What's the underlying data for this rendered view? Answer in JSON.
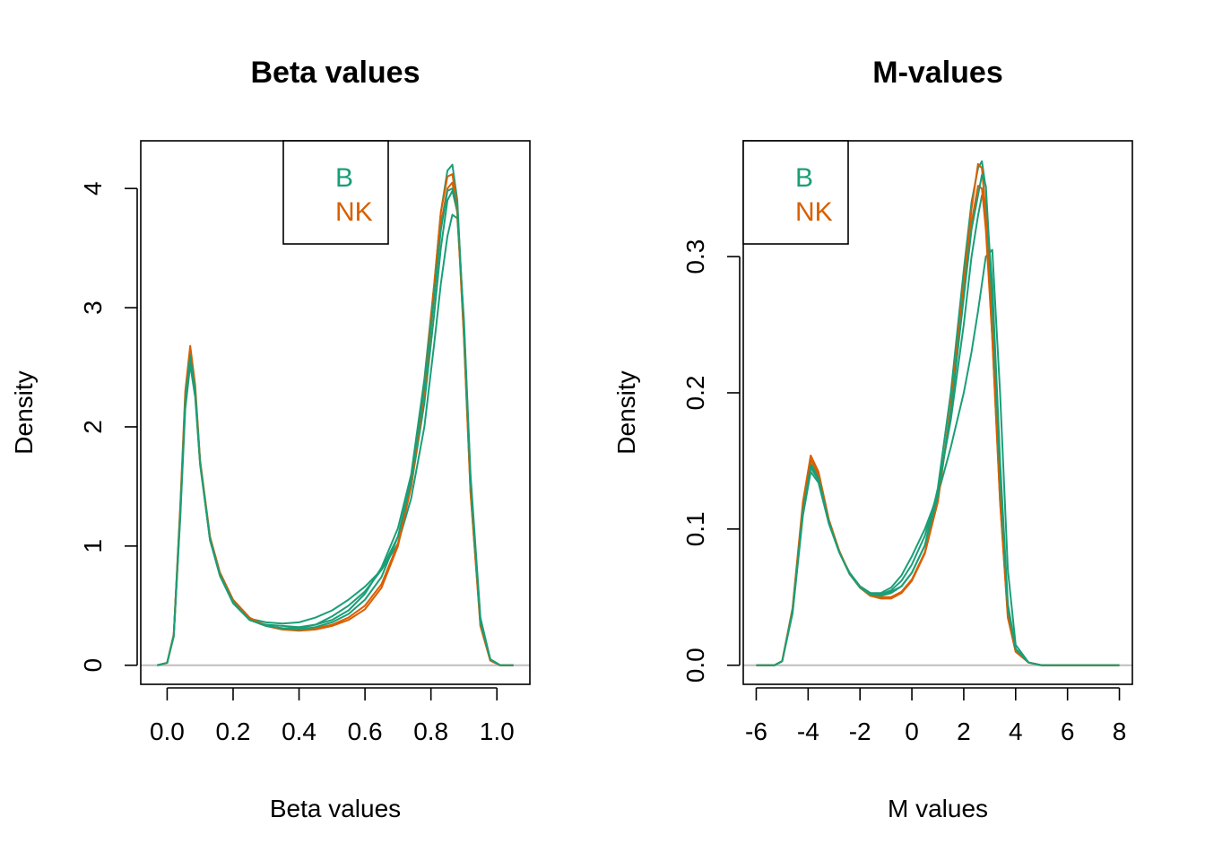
{
  "colors": {
    "B": "#1b9e77",
    "NK": "#d95f02"
  },
  "chart_data": [
    {
      "type": "line",
      "title": "Beta values",
      "xlabel": "Beta values",
      "ylabel": "Density",
      "xlim": [
        -0.08,
        1.1
      ],
      "ylim": [
        -0.16,
        4.4
      ],
      "xticks": [
        0.0,
        0.2,
        0.4,
        0.6,
        0.8,
        1.0
      ],
      "xtick_labels": [
        "0.0",
        "0.2",
        "0.4",
        "0.6",
        "0.8",
        "1.0"
      ],
      "yticks": [
        0,
        1,
        2,
        3,
        4
      ],
      "ytick_labels": [
        "0",
        "1",
        "2",
        "3",
        "4"
      ],
      "legend": {
        "position": "top-center",
        "entries": [
          {
            "label": "B",
            "color": "#1b9e77"
          },
          {
            "label": "NK",
            "color": "#d95f02"
          }
        ]
      },
      "series": [
        {
          "group": "B",
          "color": "#1b9e77",
          "x": [
            -0.03,
            0.0,
            0.02,
            0.04,
            0.055,
            0.07,
            0.085,
            0.1,
            0.13,
            0.16,
            0.2,
            0.25,
            0.3,
            0.35,
            0.4,
            0.45,
            0.5,
            0.55,
            0.6,
            0.65,
            0.7,
            0.74,
            0.78,
            0.81,
            0.83,
            0.85,
            0.865,
            0.88,
            0.9,
            0.92,
            0.95,
            0.98,
            1.01,
            1.05
          ],
          "y": [
            0.0,
            0.02,
            0.25,
            1.3,
            2.25,
            2.6,
            2.3,
            1.7,
            1.05,
            0.75,
            0.52,
            0.38,
            0.34,
            0.33,
            0.32,
            0.34,
            0.38,
            0.46,
            0.6,
            0.82,
            1.15,
            1.6,
            2.4,
            3.2,
            3.8,
            4.15,
            4.2,
            3.9,
            2.8,
            1.5,
            0.35,
            0.04,
            0.0,
            0.0
          ]
        },
        {
          "group": "B",
          "color": "#1b9e77",
          "x": [
            -0.03,
            0.0,
            0.02,
            0.04,
            0.055,
            0.07,
            0.085,
            0.1,
            0.13,
            0.16,
            0.2,
            0.25,
            0.3,
            0.35,
            0.4,
            0.45,
            0.5,
            0.55,
            0.6,
            0.65,
            0.7,
            0.74,
            0.78,
            0.81,
            0.83,
            0.85,
            0.865,
            0.88,
            0.9,
            0.92,
            0.95,
            0.98,
            1.01,
            1.05
          ],
          "y": [
            0.0,
            0.02,
            0.24,
            1.25,
            2.15,
            2.52,
            2.25,
            1.68,
            1.06,
            0.77,
            0.54,
            0.39,
            0.36,
            0.35,
            0.36,
            0.4,
            0.46,
            0.55,
            0.66,
            0.8,
            1.02,
            1.4,
            2.0,
            2.7,
            3.2,
            3.6,
            3.78,
            3.75,
            2.9,
            1.6,
            0.4,
            0.05,
            0.0,
            0.0
          ]
        },
        {
          "group": "B",
          "color": "#1b9e77",
          "x": [
            -0.03,
            0.0,
            0.02,
            0.04,
            0.055,
            0.07,
            0.085,
            0.1,
            0.13,
            0.16,
            0.2,
            0.25,
            0.3,
            0.35,
            0.4,
            0.45,
            0.5,
            0.55,
            0.6,
            0.65,
            0.7,
            0.74,
            0.78,
            0.81,
            0.83,
            0.85,
            0.865,
            0.88,
            0.9,
            0.92,
            0.95,
            0.98,
            1.01,
            1.05
          ],
          "y": [
            0.0,
            0.02,
            0.25,
            1.28,
            2.2,
            2.56,
            2.28,
            1.7,
            1.05,
            0.76,
            0.53,
            0.38,
            0.33,
            0.31,
            0.31,
            0.34,
            0.41,
            0.5,
            0.62,
            0.8,
            1.08,
            1.5,
            2.2,
            2.95,
            3.5,
            3.9,
            3.98,
            3.8,
            2.85,
            1.55,
            0.38,
            0.05,
            0.0,
            0.0
          ]
        },
        {
          "group": "NK",
          "color": "#d95f02",
          "x": [
            -0.03,
            0.0,
            0.02,
            0.04,
            0.055,
            0.07,
            0.085,
            0.1,
            0.13,
            0.16,
            0.2,
            0.25,
            0.3,
            0.35,
            0.4,
            0.45,
            0.5,
            0.55,
            0.6,
            0.65,
            0.7,
            0.74,
            0.78,
            0.81,
            0.83,
            0.85,
            0.865,
            0.88,
            0.9,
            0.92,
            0.95,
            0.98,
            1.01,
            1.05
          ],
          "y": [
            0.0,
            0.02,
            0.26,
            1.35,
            2.3,
            2.68,
            2.35,
            1.72,
            1.08,
            0.78,
            0.55,
            0.4,
            0.33,
            0.3,
            0.29,
            0.3,
            0.33,
            0.38,
            0.47,
            0.65,
            1.0,
            1.5,
            2.35,
            3.2,
            3.8,
            4.1,
            4.12,
            3.85,
            2.75,
            1.45,
            0.33,
            0.04,
            0.0,
            0.0
          ]
        },
        {
          "group": "NK",
          "color": "#d95f02",
          "x": [
            -0.03,
            0.0,
            0.02,
            0.04,
            0.055,
            0.07,
            0.085,
            0.1,
            0.13,
            0.16,
            0.2,
            0.25,
            0.3,
            0.35,
            0.4,
            0.45,
            0.5,
            0.55,
            0.6,
            0.65,
            0.7,
            0.74,
            0.78,
            0.81,
            0.83,
            0.85,
            0.865,
            0.88,
            0.9,
            0.92,
            0.95,
            0.98,
            1.01,
            1.05
          ],
          "y": [
            0.0,
            0.02,
            0.25,
            1.32,
            2.25,
            2.63,
            2.32,
            1.7,
            1.07,
            0.77,
            0.54,
            0.39,
            0.33,
            0.3,
            0.3,
            0.31,
            0.34,
            0.4,
            0.5,
            0.68,
            1.02,
            1.5,
            2.3,
            3.1,
            3.7,
            4.0,
            4.05,
            3.8,
            2.75,
            1.45,
            0.33,
            0.04,
            0.0,
            0.0
          ]
        },
        {
          "group": "B",
          "color": "#1b9e77",
          "x": [
            -0.03,
            0.0,
            0.02,
            0.04,
            0.055,
            0.07,
            0.085,
            0.1,
            0.13,
            0.16,
            0.2,
            0.25,
            0.3,
            0.35,
            0.4,
            0.45,
            0.5,
            0.55,
            0.6,
            0.65,
            0.7,
            0.74,
            0.78,
            0.81,
            0.83,
            0.85,
            0.865,
            0.88,
            0.9,
            0.92,
            0.95,
            0.98,
            1.01,
            1.05
          ],
          "y": [
            0.0,
            0.02,
            0.25,
            1.3,
            2.22,
            2.6,
            2.3,
            1.7,
            1.06,
            0.76,
            0.53,
            0.38,
            0.33,
            0.31,
            0.3,
            0.32,
            0.36,
            0.43,
            0.55,
            0.74,
            1.08,
            1.55,
            2.35,
            3.1,
            3.65,
            3.98,
            4.0,
            3.85,
            2.85,
            1.55,
            0.36,
            0.05,
            0.0,
            0.0
          ]
        }
      ]
    },
    {
      "type": "line",
      "title": "M-values",
      "xlabel": "M values",
      "ylabel": "Density",
      "xlim": [
        -6.5,
        8.5
      ],
      "ylim": [
        -0.014,
        0.385
      ],
      "xticks": [
        -6,
        -4,
        -2,
        0,
        2,
        4,
        6,
        8
      ],
      "xtick_labels": [
        "-6",
        "-4",
        "-2",
        "0",
        "2",
        "4",
        "6",
        "8"
      ],
      "yticks": [
        0.0,
        0.1,
        0.2,
        0.3
      ],
      "ytick_labels": [
        "0.0",
        "0.1",
        "0.2",
        "0.3"
      ],
      "legend": {
        "position": "top-left",
        "entries": [
          {
            "label": "B",
            "color": "#1b9e77"
          },
          {
            "label": "NK",
            "color": "#d95f02"
          }
        ]
      },
      "series": [
        {
          "group": "B",
          "color": "#1b9e77",
          "x": [
            -6,
            -5.3,
            -5.0,
            -4.6,
            -4.2,
            -3.9,
            -3.6,
            -3.2,
            -2.8,
            -2.4,
            -2.0,
            -1.6,
            -1.2,
            -0.8,
            -0.4,
            0.0,
            0.5,
            1.0,
            1.5,
            2.0,
            2.3,
            2.55,
            2.7,
            2.85,
            3.1,
            3.4,
            3.7,
            4.0,
            4.5,
            5.0,
            6.0,
            8.0
          ],
          "y": [
            0.0,
            0.0,
            0.003,
            0.04,
            0.115,
            0.148,
            0.138,
            0.105,
            0.083,
            0.067,
            0.058,
            0.053,
            0.052,
            0.054,
            0.058,
            0.068,
            0.088,
            0.13,
            0.2,
            0.29,
            0.34,
            0.365,
            0.37,
            0.35,
            0.26,
            0.13,
            0.04,
            0.012,
            0.002,
            0.0,
            0.0,
            0.0
          ]
        },
        {
          "group": "B",
          "color": "#1b9e77",
          "x": [
            -6,
            -5.3,
            -5.0,
            -4.6,
            -4.2,
            -3.9,
            -3.6,
            -3.2,
            -2.8,
            -2.4,
            -2.0,
            -1.6,
            -1.2,
            -0.8,
            -0.4,
            0.0,
            0.5,
            1.0,
            1.5,
            2.0,
            2.3,
            2.55,
            2.7,
            2.85,
            3.1,
            3.4,
            3.7,
            4.0,
            4.5,
            5.0,
            6.0,
            8.0
          ],
          "y": [
            0.0,
            0.0,
            0.003,
            0.038,
            0.11,
            0.142,
            0.134,
            0.104,
            0.083,
            0.068,
            0.058,
            0.053,
            0.053,
            0.057,
            0.066,
            0.08,
            0.1,
            0.125,
            0.16,
            0.2,
            0.23,
            0.26,
            0.28,
            0.3,
            0.305,
            0.2,
            0.07,
            0.015,
            0.002,
            0.0,
            0.0,
            0.0
          ]
        },
        {
          "group": "B",
          "color": "#1b9e77",
          "x": [
            -6,
            -5.3,
            -5.0,
            -4.6,
            -4.2,
            -3.9,
            -3.6,
            -3.2,
            -2.8,
            -2.4,
            -2.0,
            -1.6,
            -1.2,
            -0.8,
            -0.4,
            0.0,
            0.5,
            1.0,
            1.5,
            2.0,
            2.3,
            2.55,
            2.7,
            2.85,
            3.1,
            3.4,
            3.7,
            4.0,
            4.5,
            5.0,
            6.0,
            8.0
          ],
          "y": [
            0.0,
            0.0,
            0.003,
            0.039,
            0.112,
            0.145,
            0.136,
            0.104,
            0.083,
            0.067,
            0.057,
            0.052,
            0.052,
            0.055,
            0.062,
            0.074,
            0.095,
            0.128,
            0.18,
            0.25,
            0.3,
            0.33,
            0.345,
            0.34,
            0.28,
            0.15,
            0.045,
            0.012,
            0.002,
            0.0,
            0.0,
            0.0
          ]
        },
        {
          "group": "NK",
          "color": "#d95f02",
          "x": [
            -6,
            -5.3,
            -5.0,
            -4.6,
            -4.2,
            -3.9,
            -3.6,
            -3.2,
            -2.8,
            -2.4,
            -2.0,
            -1.6,
            -1.2,
            -0.8,
            -0.4,
            0.0,
            0.5,
            1.0,
            1.5,
            2.0,
            2.3,
            2.55,
            2.7,
            2.85,
            3.1,
            3.4,
            3.7,
            4.0,
            4.5,
            5.0,
            6.0,
            8.0
          ],
          "y": [
            0.0,
            0.0,
            0.003,
            0.042,
            0.12,
            0.154,
            0.142,
            0.107,
            0.084,
            0.067,
            0.057,
            0.051,
            0.049,
            0.049,
            0.053,
            0.062,
            0.082,
            0.12,
            0.19,
            0.28,
            0.335,
            0.368,
            0.365,
            0.33,
            0.24,
            0.12,
            0.035,
            0.01,
            0.002,
            0.0,
            0.0,
            0.0
          ]
        },
        {
          "group": "NK",
          "color": "#d95f02",
          "x": [
            -6,
            -5.3,
            -5.0,
            -4.6,
            -4.2,
            -3.9,
            -3.6,
            -3.2,
            -2.8,
            -2.4,
            -2.0,
            -1.6,
            -1.2,
            -0.8,
            -0.4,
            0.0,
            0.5,
            1.0,
            1.5,
            2.0,
            2.3,
            2.55,
            2.7,
            2.85,
            3.1,
            3.4,
            3.7,
            4.0,
            4.5,
            5.0,
            6.0,
            8.0
          ],
          "y": [
            0.0,
            0.0,
            0.003,
            0.041,
            0.118,
            0.151,
            0.14,
            0.106,
            0.084,
            0.067,
            0.057,
            0.051,
            0.05,
            0.05,
            0.054,
            0.063,
            0.083,
            0.12,
            0.188,
            0.275,
            0.325,
            0.352,
            0.35,
            0.32,
            0.24,
            0.12,
            0.035,
            0.01,
            0.002,
            0.0,
            0.0,
            0.0
          ]
        },
        {
          "group": "B",
          "color": "#1b9e77",
          "x": [
            -6,
            -5.3,
            -5.0,
            -4.6,
            -4.2,
            -3.9,
            -3.6,
            -3.2,
            -2.8,
            -2.4,
            -2.0,
            -1.6,
            -1.2,
            -0.8,
            -0.4,
            0.0,
            0.5,
            1.0,
            1.5,
            2.0,
            2.3,
            2.55,
            2.7,
            2.85,
            3.1,
            3.4,
            3.7,
            4.0,
            4.5,
            5.0,
            6.0,
            8.0
          ],
          "y": [
            0.0,
            0.0,
            0.003,
            0.04,
            0.113,
            0.146,
            0.137,
            0.105,
            0.083,
            0.067,
            0.057,
            0.052,
            0.051,
            0.053,
            0.058,
            0.068,
            0.088,
            0.124,
            0.185,
            0.27,
            0.32,
            0.345,
            0.36,
            0.352,
            0.27,
            0.14,
            0.042,
            0.012,
            0.002,
            0.0,
            0.0,
            0.0
          ]
        }
      ]
    }
  ]
}
